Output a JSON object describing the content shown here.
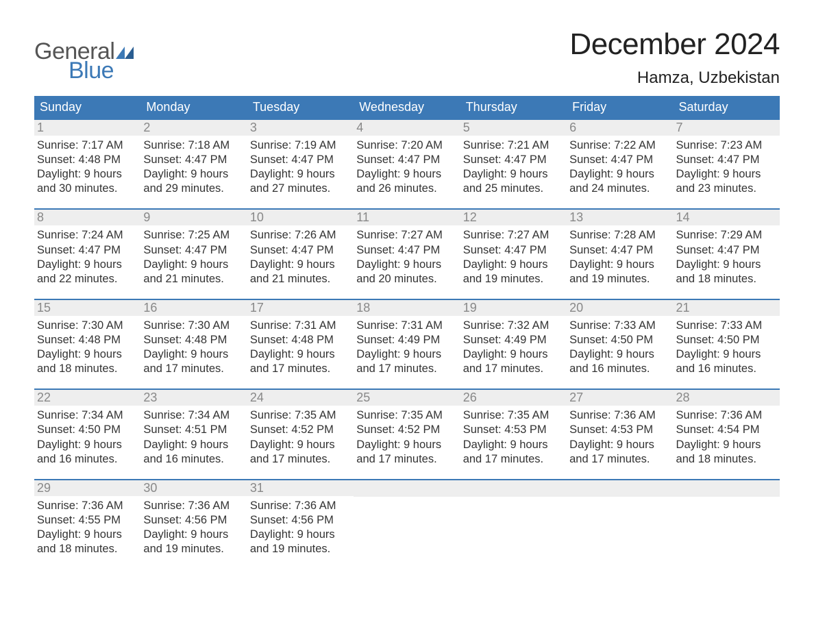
{
  "brand": {
    "text1": "General",
    "text2": "Blue",
    "color_gray": "#555555",
    "color_blue": "#3c79b6"
  },
  "title": "December 2024",
  "location": "Hamza, Uzbekistan",
  "colors": {
    "header_bg": "#3c79b6",
    "header_text": "#ffffff",
    "daynum_bg": "#eeeeee",
    "daynum_text": "#888888",
    "body_text": "#333333",
    "page_bg": "#ffffff",
    "week_border": "#3c79b6"
  },
  "font": {
    "family": "Arial",
    "title_size_pt": 33,
    "location_size_pt": 18,
    "dayheader_size_pt": 14,
    "body_size_pt": 12
  },
  "layout": {
    "columns": 7,
    "rows": 5,
    "cell_aspect": 1.1
  },
  "day_names": [
    "Sunday",
    "Monday",
    "Tuesday",
    "Wednesday",
    "Thursday",
    "Friday",
    "Saturday"
  ],
  "weeks": [
    [
      {
        "day": 1,
        "sunrise": "7:17 AM",
        "sunset": "4:48 PM",
        "daylight_h": 9,
        "daylight_m": 30
      },
      {
        "day": 2,
        "sunrise": "7:18 AM",
        "sunset": "4:47 PM",
        "daylight_h": 9,
        "daylight_m": 29
      },
      {
        "day": 3,
        "sunrise": "7:19 AM",
        "sunset": "4:47 PM",
        "daylight_h": 9,
        "daylight_m": 27
      },
      {
        "day": 4,
        "sunrise": "7:20 AM",
        "sunset": "4:47 PM",
        "daylight_h": 9,
        "daylight_m": 26
      },
      {
        "day": 5,
        "sunrise": "7:21 AM",
        "sunset": "4:47 PM",
        "daylight_h": 9,
        "daylight_m": 25
      },
      {
        "day": 6,
        "sunrise": "7:22 AM",
        "sunset": "4:47 PM",
        "daylight_h": 9,
        "daylight_m": 24
      },
      {
        "day": 7,
        "sunrise": "7:23 AM",
        "sunset": "4:47 PM",
        "daylight_h": 9,
        "daylight_m": 23
      }
    ],
    [
      {
        "day": 8,
        "sunrise": "7:24 AM",
        "sunset": "4:47 PM",
        "daylight_h": 9,
        "daylight_m": 22
      },
      {
        "day": 9,
        "sunrise": "7:25 AM",
        "sunset": "4:47 PM",
        "daylight_h": 9,
        "daylight_m": 21
      },
      {
        "day": 10,
        "sunrise": "7:26 AM",
        "sunset": "4:47 PM",
        "daylight_h": 9,
        "daylight_m": 21
      },
      {
        "day": 11,
        "sunrise": "7:27 AM",
        "sunset": "4:47 PM",
        "daylight_h": 9,
        "daylight_m": 20
      },
      {
        "day": 12,
        "sunrise": "7:27 AM",
        "sunset": "4:47 PM",
        "daylight_h": 9,
        "daylight_m": 19
      },
      {
        "day": 13,
        "sunrise": "7:28 AM",
        "sunset": "4:47 PM",
        "daylight_h": 9,
        "daylight_m": 19
      },
      {
        "day": 14,
        "sunrise": "7:29 AM",
        "sunset": "4:47 PM",
        "daylight_h": 9,
        "daylight_m": 18
      }
    ],
    [
      {
        "day": 15,
        "sunrise": "7:30 AM",
        "sunset": "4:48 PM",
        "daylight_h": 9,
        "daylight_m": 18
      },
      {
        "day": 16,
        "sunrise": "7:30 AM",
        "sunset": "4:48 PM",
        "daylight_h": 9,
        "daylight_m": 17
      },
      {
        "day": 17,
        "sunrise": "7:31 AM",
        "sunset": "4:48 PM",
        "daylight_h": 9,
        "daylight_m": 17
      },
      {
        "day": 18,
        "sunrise": "7:31 AM",
        "sunset": "4:49 PM",
        "daylight_h": 9,
        "daylight_m": 17
      },
      {
        "day": 19,
        "sunrise": "7:32 AM",
        "sunset": "4:49 PM",
        "daylight_h": 9,
        "daylight_m": 17
      },
      {
        "day": 20,
        "sunrise": "7:33 AM",
        "sunset": "4:50 PM",
        "daylight_h": 9,
        "daylight_m": 16
      },
      {
        "day": 21,
        "sunrise": "7:33 AM",
        "sunset": "4:50 PM",
        "daylight_h": 9,
        "daylight_m": 16
      }
    ],
    [
      {
        "day": 22,
        "sunrise": "7:34 AM",
        "sunset": "4:50 PM",
        "daylight_h": 9,
        "daylight_m": 16
      },
      {
        "day": 23,
        "sunrise": "7:34 AM",
        "sunset": "4:51 PM",
        "daylight_h": 9,
        "daylight_m": 16
      },
      {
        "day": 24,
        "sunrise": "7:35 AM",
        "sunset": "4:52 PM",
        "daylight_h": 9,
        "daylight_m": 17
      },
      {
        "day": 25,
        "sunrise": "7:35 AM",
        "sunset": "4:52 PM",
        "daylight_h": 9,
        "daylight_m": 17
      },
      {
        "day": 26,
        "sunrise": "7:35 AM",
        "sunset": "4:53 PM",
        "daylight_h": 9,
        "daylight_m": 17
      },
      {
        "day": 27,
        "sunrise": "7:36 AM",
        "sunset": "4:53 PM",
        "daylight_h": 9,
        "daylight_m": 17
      },
      {
        "day": 28,
        "sunrise": "7:36 AM",
        "sunset": "4:54 PM",
        "daylight_h": 9,
        "daylight_m": 18
      }
    ],
    [
      {
        "day": 29,
        "sunrise": "7:36 AM",
        "sunset": "4:55 PM",
        "daylight_h": 9,
        "daylight_m": 18
      },
      {
        "day": 30,
        "sunrise": "7:36 AM",
        "sunset": "4:56 PM",
        "daylight_h": 9,
        "daylight_m": 19
      },
      {
        "day": 31,
        "sunrise": "7:36 AM",
        "sunset": "4:56 PM",
        "daylight_h": 9,
        "daylight_m": 19
      },
      null,
      null,
      null,
      null
    ]
  ],
  "labels": {
    "sunrise_prefix": "Sunrise: ",
    "sunset_prefix": "Sunset: ",
    "daylight_prefix": "Daylight: ",
    "hours_word": " hours",
    "and_word": "and ",
    "minutes_word": " minutes."
  }
}
